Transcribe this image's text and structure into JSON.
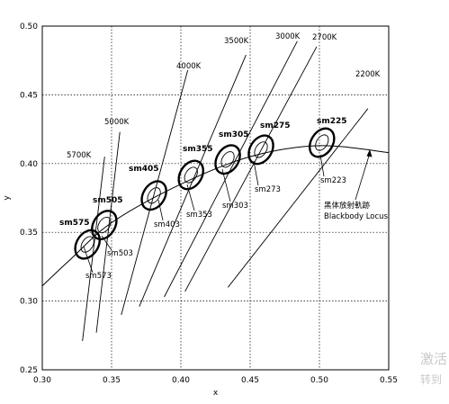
{
  "chart_data": {
    "type": "scatter",
    "title": "",
    "xlabel": "x",
    "ylabel": "y",
    "xlim": [
      0.3,
      0.55
    ],
    "ylim": [
      0.25,
      0.5
    ],
    "xticks": [
      "0.30",
      "0.35",
      "0.40",
      "0.45",
      "0.50",
      "0.55"
    ],
    "yticks": [
      "0.25",
      "0.30",
      "0.35",
      "0.40",
      "0.45",
      "0.50"
    ],
    "grid": true,
    "blackbody_locus": {
      "label_cn": "黑体放射軌跡",
      "label_en": "Blackbody Locus",
      "points": [
        [
          0.3,
          0.311
        ],
        [
          0.32,
          0.33
        ],
        [
          0.35,
          0.357
        ],
        [
          0.4,
          0.385
        ],
        [
          0.45,
          0.405
        ],
        [
          0.5,
          0.413
        ],
        [
          0.55,
          0.408
        ]
      ]
    },
    "cct_lines": [
      {
        "label": "5700K",
        "from": [
          0.329,
          0.271
        ],
        "to": [
          0.345,
          0.405
        ]
      },
      {
        "label": "5000K",
        "from": [
          0.339,
          0.277
        ],
        "to": [
          0.356,
          0.423
        ]
      },
      {
        "label": "4000K",
        "from": [
          0.357,
          0.29
        ],
        "to": [
          0.405,
          0.468
        ]
      },
      {
        "label": "3500K",
        "from": [
          0.37,
          0.296
        ],
        "to": [
          0.447,
          0.479
        ]
      },
      {
        "label": "3000K",
        "from": [
          0.388,
          0.303
        ],
        "to": [
          0.484,
          0.489
        ]
      },
      {
        "label": "2700K",
        "from": [
          0.403,
          0.307
        ],
        "to": [
          0.498,
          0.485
        ]
      },
      {
        "label": "2200K",
        "from": [
          0.434,
          0.31
        ],
        "to": [
          0.535,
          0.44
        ]
      }
    ],
    "ellipses": [
      {
        "name": "sm575",
        "center": [
          0.3326,
          0.3412
        ],
        "size": "large"
      },
      {
        "name": "sm573",
        "center": [
          0.3326,
          0.3412
        ],
        "size": "small"
      },
      {
        "name": "sm505",
        "center": [
          0.3447,
          0.3553
        ],
        "size": "large"
      },
      {
        "name": "sm503",
        "center": [
          0.3447,
          0.3553
        ],
        "size": "small"
      },
      {
        "name": "sm405",
        "center": [
          0.3806,
          0.3768
        ],
        "size": "large"
      },
      {
        "name": "sm403",
        "center": [
          0.3806,
          0.3768
        ],
        "size": "small"
      },
      {
        "name": "sm355",
        "center": [
          0.4073,
          0.3917
        ],
        "size": "large"
      },
      {
        "name": "sm353",
        "center": [
          0.4073,
          0.3917
        ],
        "size": "small"
      },
      {
        "name": "sm305",
        "center": [
          0.4338,
          0.403
        ],
        "size": "large"
      },
      {
        "name": "sm303",
        "center": [
          0.4338,
          0.403
        ],
        "size": "small"
      },
      {
        "name": "sm275",
        "center": [
          0.4578,
          0.4101
        ],
        "size": "large"
      },
      {
        "name": "sm273",
        "center": [
          0.4578,
          0.4101
        ],
        "size": "small"
      },
      {
        "name": "sm225",
        "center": [
          0.5018,
          0.4152
        ],
        "size": "large"
      },
      {
        "name": "sm223",
        "center": [
          0.5018,
          0.4152
        ],
        "size": "small"
      }
    ]
  },
  "watermark": {
    "line1": "激活",
    "line2": "转到"
  }
}
